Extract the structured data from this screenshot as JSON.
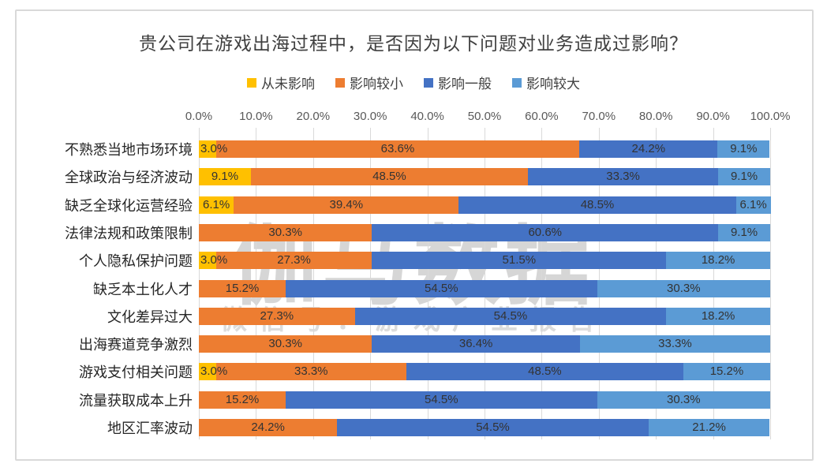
{
  "title": "贵公司在游戏出海过程中，是否因为以下问题对业务造成过影响？",
  "watermark": {
    "line1": "伽马数据",
    "line2": "微信号：游戏产业报告"
  },
  "axis": {
    "ticks": [
      "0.0%",
      "10.0%",
      "20.0%",
      "30.0%",
      "40.0%",
      "50.0%",
      "60.0%",
      "70.0%",
      "80.0%",
      "90.0%",
      "100.0%"
    ]
  },
  "colors": {
    "never": "#FFC000",
    "small": "#ED7D31",
    "medium": "#4472C4",
    "large": "#5B9BD5",
    "gridline": "#d9d9d9",
    "frame": "#d9d9d9"
  },
  "chart_data": {
    "type": "bar",
    "stacked": true,
    "orientation": "horizontal",
    "title": "贵公司在游戏出海过程中，是否因为以下问题对业务造成过影响？",
    "xlabel": "",
    "ylabel": "",
    "xlim": [
      0,
      100
    ],
    "tick_step": 10,
    "value_suffix": "%",
    "grid": true,
    "legend_position": "top",
    "categories": [
      "不熟悉当地市场环境",
      "全球政治与经济波动",
      "缺乏全球化运营经验",
      "法律法规和政策限制",
      "个人隐私保护问题",
      "缺乏本土化人才",
      "文化差异过大",
      "出海赛道竞争激烈",
      "游戏支付相关问题",
      "流量获取成本上升",
      "地区汇率波动"
    ],
    "series": [
      {
        "name": "从未影响",
        "color": "#FFC000",
        "values": [
          3.0,
          9.1,
          6.1,
          0,
          3.0,
          0,
          0,
          0,
          3.0,
          0,
          0
        ]
      },
      {
        "name": "影响较小",
        "color": "#ED7D31",
        "values": [
          63.6,
          48.5,
          39.4,
          30.3,
          27.3,
          15.2,
          27.3,
          30.3,
          33.3,
          15.2,
          24.2
        ]
      },
      {
        "name": "影响一般",
        "color": "#4472C4",
        "values": [
          24.2,
          33.3,
          48.5,
          60.6,
          51.5,
          54.5,
          54.5,
          36.4,
          48.5,
          54.5,
          54.5
        ]
      },
      {
        "name": "影响较大",
        "color": "#5B9BD5",
        "values": [
          9.1,
          9.1,
          6.1,
          9.1,
          18.2,
          30.3,
          18.2,
          33.3,
          15.2,
          30.3,
          21.2
        ]
      }
    ]
  }
}
